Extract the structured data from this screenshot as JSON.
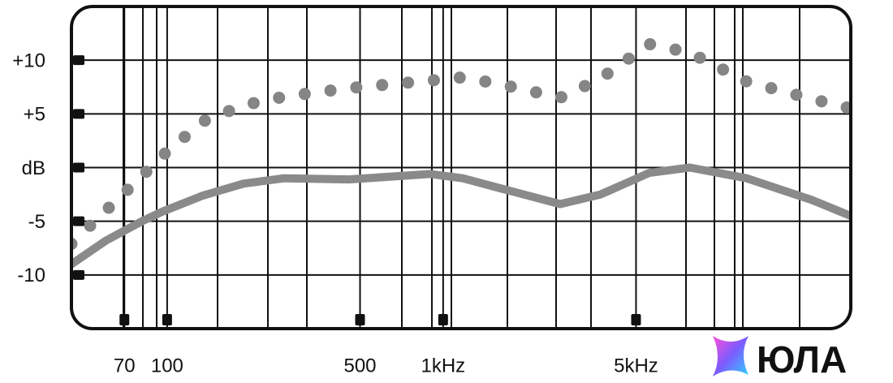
{
  "chart_data": {
    "type": "line",
    "x": [
      45,
      60,
      81,
      96,
      135,
      189,
      265,
      455,
      898,
      1178,
      1651,
      2654,
      3722,
      5583,
      7833,
      12600,
      21600,
      30000
    ],
    "series": [
      {
        "color": "#858585",
        "style": "dotted",
        "values": [
          -7.1,
          -4,
          -0.8,
          1.1,
          4.3,
          5.8,
          6.6,
          7.4,
          8.1,
          8.4,
          7.7,
          6.5,
          8.3,
          11.5,
          10.7,
          8,
          6.4,
          5.5
        ]
      },
      {
        "color": "#8a8a8a",
        "style": "solid",
        "values": [
          -9,
          -6.8,
          -5,
          -4.1,
          -2.6,
          -1.5,
          -1,
          -1.1,
          -0.6,
          -1,
          -2,
          -3.4,
          -2.5,
          -0.5,
          0,
          -1,
          -3,
          -4.5
        ]
      }
    ],
    "xscale": "log",
    "xlim": [
      45,
      30000
    ],
    "xticks": [
      70,
      100,
      500,
      {
        "value": 1000,
        "label": "1kHz"
      },
      {
        "value": 5000,
        "label": "5kHz"
      }
    ],
    "ylim": [
      -15,
      15
    ],
    "yticks": [
      {
        "value": 10,
        "label": "+10"
      },
      {
        "value": 5,
        "label": "+5"
      },
      {
        "value": 0,
        "label": "dB"
      },
      -5,
      -10
    ],
    "grid": true,
    "watermark": "ЮЛА"
  }
}
